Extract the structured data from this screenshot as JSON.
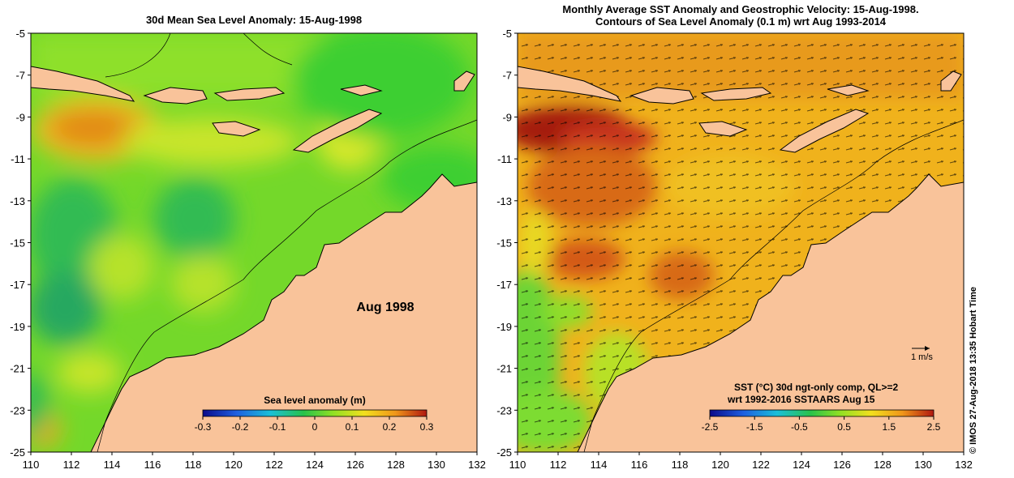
{
  "left_map": {
    "title": "30d Mean Sea Level Anomaly: 15-Aug-1998",
    "label": "Aug 1998",
    "colorbar": {
      "title": "Sea level anomaly (m)",
      "ticks": [
        "-0.3",
        "-0.2",
        "-0.1",
        "0",
        "0.1",
        "0.2",
        "0.3"
      ]
    }
  },
  "right_map": {
    "title_line1": "Monthly Average SST Anomaly  and Geostrophic Velocity: 15-Aug-1998.",
    "title_line2": "Contours of Sea Level Anomaly (0.1 m) wrt Aug 1993-2014",
    "legend_line1": "SST (°C) 30d ngt-only comp, QL>=2",
    "legend_line2": "wrt 1992-2016 SSTAARS Aug 15",
    "scale_label": "1 m/s",
    "colorbar": {
      "ticks": [
        "-2.5",
        "-1.5",
        "-0.5",
        "0.5",
        "1.5",
        "2.5"
      ]
    }
  },
  "axes": {
    "x_ticks": [
      "110",
      "112",
      "114",
      "116",
      "118",
      "120",
      "122",
      "124",
      "126",
      "128",
      "130",
      "132"
    ],
    "y_ticks": [
      "-5",
      "-7",
      "-9",
      "-11",
      "-13",
      "-15",
      "-17",
      "-19",
      "-21",
      "-23",
      "-25"
    ]
  },
  "credit": "© IMOS 27-Aug-2018 13:35 Hobart Time",
  "colors": {
    "land": "#f9c39a",
    "sea_neutral": "#74d82a",
    "sea_positive": "#f0a818",
    "sea_strong": "#b0200e"
  }
}
